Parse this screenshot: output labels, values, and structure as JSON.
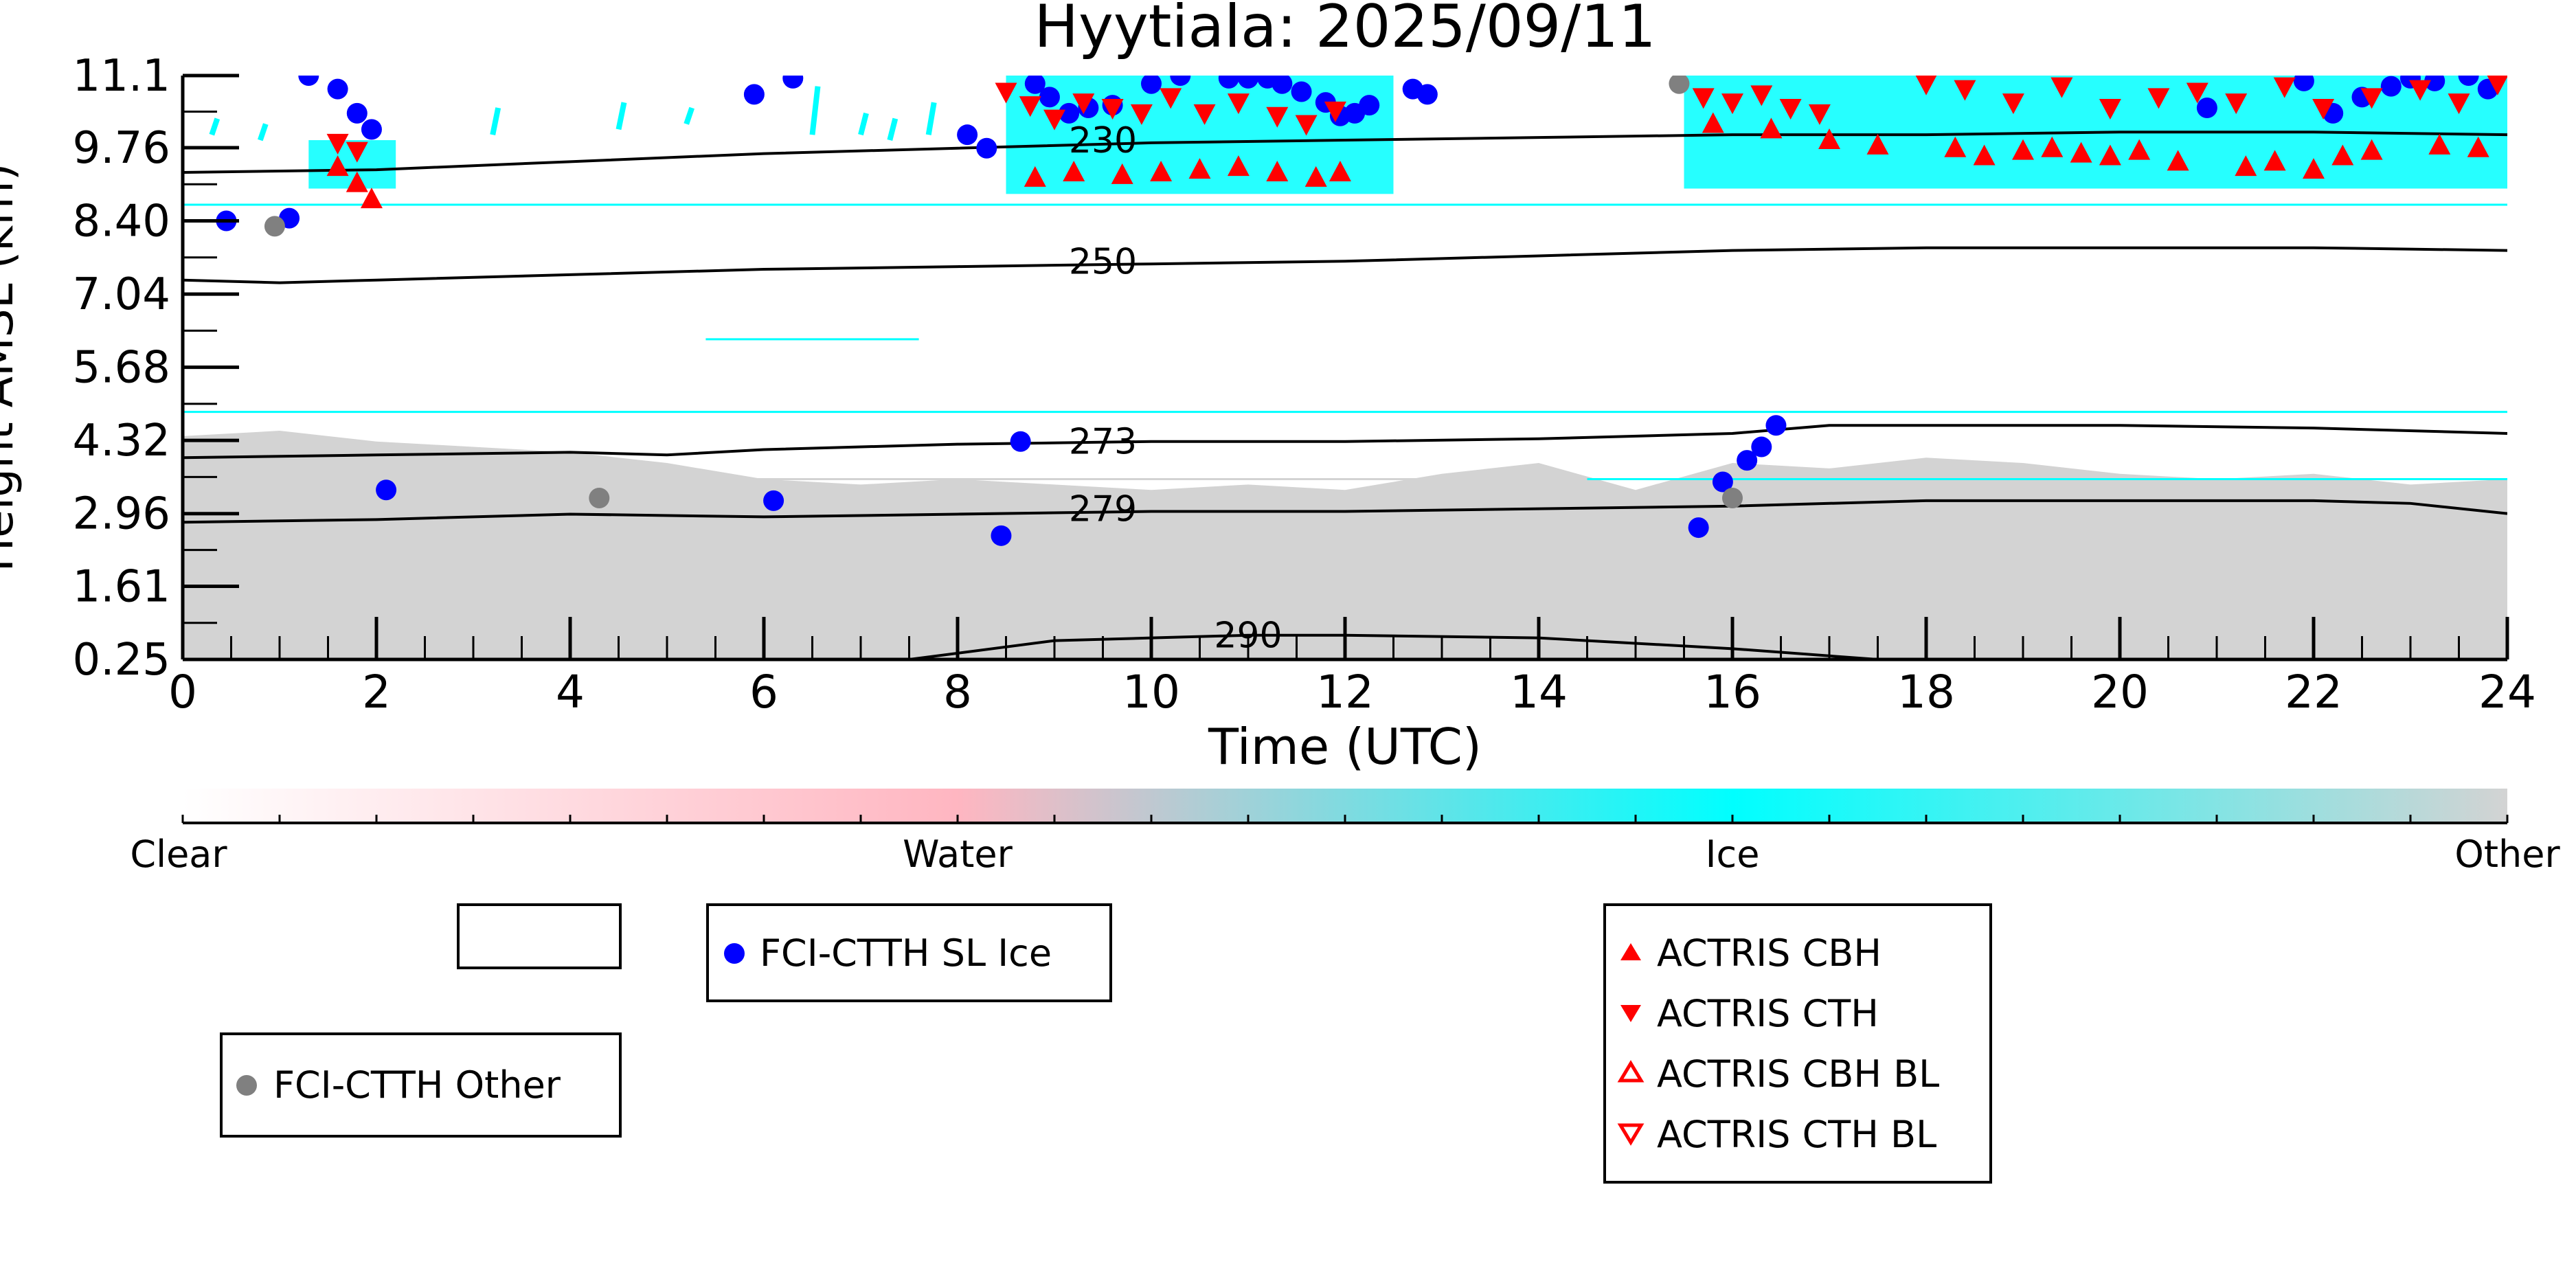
{
  "chart_data": {
    "type": "scatter",
    "title": "Hyytiala: 2025/09/11",
    "xlabel": "Time (UTC)",
    "ylabel": "Height AMSL (km)",
    "xlim": [
      0,
      24
    ],
    "ylim": [
      0.25,
      11.1
    ],
    "xticks": [
      "0",
      "2",
      "4",
      "6",
      "8",
      "10",
      "12",
      "14",
      "16",
      "18",
      "20",
      "22",
      "24"
    ],
    "yticks": [
      "0.25",
      "1.61",
      "2.96",
      "4.32",
      "5.68",
      "7.04",
      "8.40",
      "9.76",
      "11.1"
    ],
    "colorbar": {
      "labels": [
        "Clear",
        "Water",
        "Ice",
        "Other"
      ],
      "colors": [
        "#ffffff",
        "#ffb6c1",
        "#00ffff",
        "#d3d3d3"
      ]
    },
    "contours": [
      {
        "label": "230",
        "x": [
          0,
          2,
          4,
          6,
          8,
          10,
          12,
          14,
          16,
          18,
          20,
          22,
          24
        ],
        "y": [
          9.3,
          9.35,
          9.5,
          9.65,
          9.75,
          9.85,
          9.9,
          9.95,
          10.0,
          10.0,
          10.05,
          10.05,
          10.0
        ]
      },
      {
        "label": "250",
        "x": [
          0,
          1,
          2,
          4,
          6,
          8,
          10,
          12,
          14,
          16,
          18,
          20,
          22,
          24
        ],
        "y": [
          7.3,
          7.25,
          7.3,
          7.4,
          7.5,
          7.55,
          7.6,
          7.65,
          7.75,
          7.85,
          7.9,
          7.9,
          7.9,
          7.85
        ]
      },
      {
        "label": "273",
        "x": [
          0,
          2,
          4,
          5,
          6,
          8,
          10,
          12,
          14,
          16,
          17,
          18,
          20,
          22,
          24
        ],
        "y": [
          4.0,
          4.05,
          4.1,
          4.05,
          4.15,
          4.25,
          4.3,
          4.3,
          4.35,
          4.45,
          4.6,
          4.6,
          4.6,
          4.55,
          4.45
        ]
      },
      {
        "label": "279",
        "x": [
          0,
          2,
          4,
          6,
          8,
          10,
          12,
          14,
          16,
          18,
          20,
          22,
          23,
          24
        ],
        "y": [
          2.8,
          2.85,
          2.95,
          2.9,
          2.95,
          3.0,
          3.0,
          3.05,
          3.1,
          3.2,
          3.2,
          3.2,
          3.15,
          2.96
        ]
      },
      {
        "label": "290",
        "x": [
          7.5,
          9,
          10,
          11,
          12,
          14,
          16,
          17.5
        ],
        "y": [
          0.25,
          0.6,
          0.65,
          0.7,
          0.7,
          0.65,
          0.45,
          0.25
        ]
      }
    ],
    "cloud_regions": [
      {
        "class": "Other",
        "x0": 0,
        "x1": 24,
        "y_low": 0.25,
        "y_high": [
          4.4,
          4.5,
          4.3,
          4.2,
          4.1,
          3.9,
          3.6,
          3.5,
          3.6,
          3.5,
          3.4,
          3.5,
          3.4,
          3.7,
          3.9,
          3.4,
          3.9,
          3.8,
          4.0,
          3.9,
          3.7,
          3.6,
          3.7,
          3.5,
          3.6
        ]
      },
      {
        "class": "Ice",
        "x0": 1.3,
        "x1": 2.2,
        "y0": 9.0,
        "y1": 9.9
      },
      {
        "class": "Ice",
        "x0": 8.5,
        "x1": 12.5,
        "y0": 8.9,
        "y1": 11.1
      },
      {
        "class": "Ice",
        "x0": 15.5,
        "x1": 24,
        "y0": 9.0,
        "y1": 11.1
      }
    ],
    "ice_streaks": [
      {
        "x": 0.3,
        "y0": 10.0,
        "y1": 10.3
      },
      {
        "x": 0.8,
        "y0": 9.9,
        "y1": 10.2
      },
      {
        "x": 3.2,
        "y0": 10.0,
        "y1": 10.5
      },
      {
        "x": 4.5,
        "y0": 10.1,
        "y1": 10.6
      },
      {
        "x": 5.2,
        "y0": 10.2,
        "y1": 10.5
      },
      {
        "x": 6.5,
        "y0": 10.0,
        "y1": 10.9
      },
      {
        "x": 7.0,
        "y0": 10.0,
        "y1": 10.4
      },
      {
        "x": 7.3,
        "y0": 9.9,
        "y1": 10.3
      },
      {
        "x": 7.7,
        "y0": 10.0,
        "y1": 10.6
      }
    ],
    "horizontal_lines": [
      {
        "class": "Ice",
        "y": 8.7,
        "x0": 0,
        "x1": 24
      },
      {
        "class": "Ice",
        "y": 4.85,
        "x0": 0,
        "x1": 24
      },
      {
        "class": "Ice",
        "y": 3.6,
        "x0": 14.5,
        "x1": 24
      },
      {
        "class": "Other",
        "y": 3.6,
        "x0": 0,
        "x1": 14.5
      },
      {
        "class": "Ice",
        "y": 6.2,
        "x0": 5.4,
        "x1": 7.6
      }
    ],
    "series": [
      {
        "name": "FCI-CTTH SL Ice",
        "color": "#0000ff",
        "marker": "circle",
        "x": [
          0.45,
          1.1,
          1.3,
          1.6,
          1.8,
          1.95,
          2.1,
          5.9,
          6.1,
          6.3,
          8.1,
          8.3,
          8.45,
          8.65,
          8.8,
          8.95,
          9.15,
          9.35,
          9.6,
          10.0,
          10.3,
          10.8,
          11.0,
          11.2,
          11.35,
          11.55,
          11.8,
          11.95,
          12.1,
          12.25,
          12.7,
          12.85,
          15.65,
          15.9,
          16.15,
          16.3,
          16.45,
          20.9,
          21.9,
          22.2,
          22.5,
          22.8,
          23.0,
          23.25,
          23.6,
          23.8
        ],
        "y": [
          8.4,
          8.45,
          11.1,
          10.85,
          10.4,
          10.1,
          3.4,
          10.75,
          3.2,
          11.05,
          10.0,
          9.75,
          2.55,
          4.3,
          10.95,
          10.7,
          10.4,
          10.5,
          10.55,
          10.95,
          11.1,
          11.05,
          11.05,
          11.05,
          10.95,
          10.8,
          10.6,
          10.35,
          10.4,
          10.55,
          10.85,
          10.75,
          2.7,
          3.55,
          3.95,
          4.2,
          4.6,
          10.5,
          11.0,
          10.4,
          10.7,
          10.9,
          11.05,
          11.0,
          11.1,
          10.85
        ]
      },
      {
        "name": "FCI-CTTH Other",
        "color": "#808080",
        "marker": "circle",
        "x": [
          0.95,
          4.3,
          15.45,
          16.0
        ],
        "y": [
          8.3,
          3.25,
          10.95,
          3.25
        ]
      },
      {
        "name": "ACTRIS CBH",
        "color": "#ff0000",
        "marker": "triangle-up",
        "x": [
          1.6,
          1.8,
          1.95,
          8.8,
          9.2,
          9.7,
          10.1,
          10.5,
          10.9,
          11.3,
          11.7,
          11.95,
          15.8,
          16.4,
          17.0,
          17.5,
          18.3,
          18.6,
          19.0,
          19.3,
          19.6,
          19.9,
          20.2,
          20.6,
          21.3,
          21.6,
          22.0,
          22.3,
          22.6,
          23.3,
          23.7
        ],
        "y": [
          9.4,
          9.1,
          8.8,
          9.2,
          9.3,
          9.25,
          9.3,
          9.35,
          9.4,
          9.3,
          9.2,
          9.3,
          10.2,
          10.1,
          9.9,
          9.8,
          9.75,
          9.6,
          9.7,
          9.75,
          9.65,
          9.6,
          9.7,
          9.5,
          9.4,
          9.5,
          9.35,
          9.6,
          9.7,
          9.8,
          9.75
        ]
      },
      {
        "name": "ACTRIS CTH",
        "color": "#ff0000",
        "marker": "triangle-down",
        "x": [
          1.6,
          1.8,
          8.5,
          8.75,
          9.0,
          9.3,
          9.6,
          9.9,
          10.2,
          10.55,
          10.9,
          11.3,
          11.6,
          11.9,
          15.7,
          16.0,
          16.3,
          16.6,
          16.9,
          18.0,
          18.4,
          18.9,
          19.4,
          19.9,
          20.4,
          20.8,
          21.2,
          21.7,
          22.1,
          22.6,
          23.1,
          23.5,
          23.9
        ],
        "y": [
          9.85,
          9.7,
          10.8,
          10.55,
          10.3,
          10.6,
          10.5,
          10.4,
          10.7,
          10.4,
          10.6,
          10.35,
          10.2,
          10.45,
          10.7,
          10.6,
          10.75,
          10.5,
          10.4,
          10.95,
          10.85,
          10.6,
          10.9,
          10.5,
          10.7,
          10.8,
          10.6,
          10.9,
          10.5,
          10.7,
          10.85,
          10.6,
          10.95
        ]
      }
    ],
    "legend": {
      "box1": [],
      "box2": [
        "FCI-CTTH SL Ice"
      ],
      "box3": [
        "FCI-CTTH Other"
      ],
      "box4": [
        "ACTRIS CBH",
        "ACTRIS CTH",
        "ACTRIS CBH BL",
        "ACTRIS CTH BL"
      ]
    }
  }
}
